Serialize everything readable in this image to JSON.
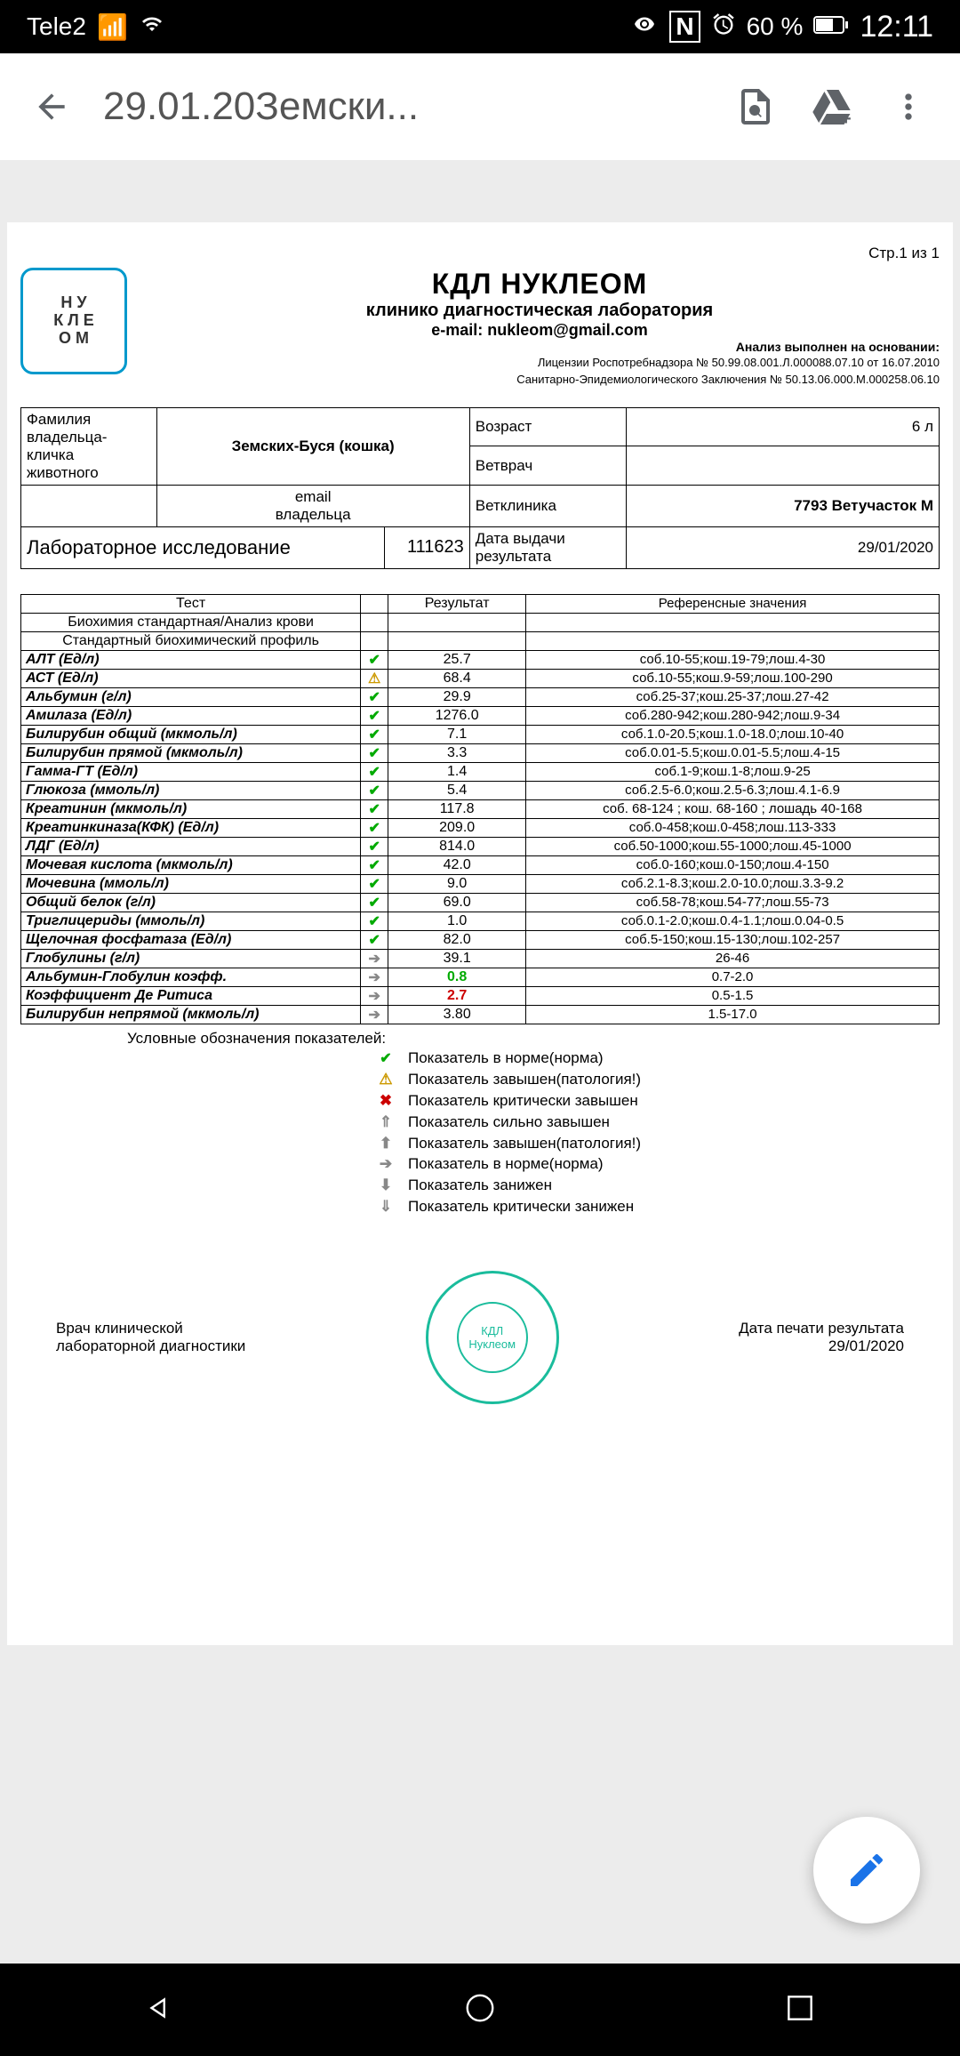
{
  "statusbar": {
    "carrier": "Tele2",
    "nfc": "N",
    "battery_pct": "60 %",
    "time": "12:11"
  },
  "appbar": {
    "title": "29.01.20Земски..."
  },
  "doc": {
    "page_counter": "Стр.1 из 1",
    "lab_title": "КДЛ НУКЛЕОМ",
    "lab_sub": "клинико диагностическая лаборатория",
    "lab_email_label": "e-mail: nukleom@gmail.com",
    "basis": "Анализ выполнен на основании:",
    "license1": "Лицензии Роспотребнадзора № 50.99.08.001.Л.000088.07.10 от 16.07.2010",
    "license2": "Санитарно-Эпидемиологического Заключения № 50.13.06.000.М.000258.06.10",
    "logo_text": "Н У\nК Л Е\nО М",
    "owner_label": "Фамилия\nвладельца-\nкличка\nживотного",
    "owner_value": "Земских-Буся (кошка)",
    "age_label": "Возраст",
    "age_value": "6 л",
    "vet_label": "Ветврач",
    "owner_email_label": "email\nвладельца",
    "clinic_label": "Ветклиника",
    "clinic_value": "7793 Ветучасток М",
    "study_label": "Лабораторное исследование",
    "study_num": "111623",
    "date_label": "Дата выдачи результата",
    "date_value": "29/01/2020",
    "columns": {
      "test": "Тест",
      "result": "Результат",
      "ref": "Референсные значения"
    },
    "section1": "Биохимия стандартная/Анализ крови",
    "section2": "Стандартный биохимический профиль",
    "rows": [
      {
        "test": "АЛТ (Ед/л)",
        "icon": "check",
        "result": "25.7",
        "ref": "соб.10-55;кош.19-79;лош.4-30"
      },
      {
        "test": "АСТ (Ед/л)",
        "icon": "warn",
        "result": "68.4",
        "ref": "соб.10-55;кош.9-59;лош.100-290"
      },
      {
        "test": "Альбумин (г/л)",
        "icon": "check",
        "result": "29.9",
        "ref": "соб.25-37;кош.25-37;лош.27-42"
      },
      {
        "test": "Амилаза (Ед/л)",
        "icon": "check",
        "result": "1276.0",
        "ref": "соб.280-942;кош.280-942;лош.9-34"
      },
      {
        "test": "Билирубин общий (мкмоль/л)",
        "icon": "check",
        "result": "7.1",
        "ref": "соб.1.0-20.5;кош.1.0-18.0;лош.10-40"
      },
      {
        "test": "Билирубин прямой (мкмоль/л)",
        "icon": "check",
        "result": "3.3",
        "ref": "соб.0.01-5.5;кош.0.01-5.5;лош.4-15"
      },
      {
        "test": "Гамма-ГТ (Ед/л)",
        "icon": "check",
        "result": "1.4",
        "ref": "соб.1-9;кош.1-8;лош.9-25"
      },
      {
        "test": "Глюкоза (ммоль/л)",
        "icon": "check",
        "result": "5.4",
        "ref": "соб.2.5-6.0;кош.2.5-6.3;лош.4.1-6.9"
      },
      {
        "test": "Креатинин (мкмоль/л)",
        "icon": "check",
        "result": "117.8",
        "ref": "соб. 68-124 ; кош. 68-160 ; лошадь 40-168"
      },
      {
        "test": "Креатинкиназа(КФК) (Ед/л)",
        "icon": "check",
        "result": "209.0",
        "ref": "соб.0-458;кош.0-458;лош.113-333"
      },
      {
        "test": "ЛДГ (Ед/л)",
        "icon": "check",
        "result": "814.0",
        "ref": "соб.50-1000;кош.55-1000;лош.45-1000"
      },
      {
        "test": "Мочевая кислота (мкмоль/л)",
        "icon": "check",
        "result": "42.0",
        "ref": "соб.0-160;кош.0-150;лош.4-150"
      },
      {
        "test": "Мочевина (ммоль/л)",
        "icon": "check",
        "result": "9.0",
        "ref": "соб.2.1-8.3;кош.2.0-10.0;лош.3.3-9.2"
      },
      {
        "test": "Общий белок (г/л)",
        "icon": "check",
        "result": "69.0",
        "ref": "соб.58-78;кош.54-77;лош.55-73"
      },
      {
        "test": "Триглицериды (ммоль/л)",
        "icon": "check",
        "result": "1.0",
        "ref": "соб.0.1-2.0;кош.0.4-1.1;лош.0.04-0.5"
      },
      {
        "test": "Щелочная фосфатаза (Ед/л)",
        "icon": "check",
        "result": "82.0",
        "ref": "соб.5-150;кош.15-130;лош.102-257"
      },
      {
        "test": "Глобулины (г/л)",
        "icon": "arrow",
        "result": "39.1",
        "ref": "26-46"
      },
      {
        "test": "Альбумин-Глобулин коэфф.",
        "icon": "arrow",
        "result": "0.8",
        "result_class": "green-val",
        "ref": "0.7-2.0"
      },
      {
        "test": "Коэффициент Де Ритиса",
        "icon": "arrow",
        "result": "2.7",
        "result_class": "red-val",
        "ref": "0.5-1.5"
      },
      {
        "test": "Билирубин непрямой (мкмоль/л)",
        "icon": "arrow",
        "result": "3.80",
        "ref": "1.5-17.0"
      }
    ],
    "legend_title": "Условные обозначения показателей:",
    "legend": [
      {
        "icon": "check",
        "text": "Показатель в норме(норма)"
      },
      {
        "icon": "warn",
        "text": "Показатель завышен(патология!)"
      },
      {
        "icon": "cross",
        "text": "Показатель критически завышен"
      },
      {
        "icon": "up2",
        "text": "Показатель сильно завышен"
      },
      {
        "icon": "up",
        "text": "Показатель завышен(патология!)"
      },
      {
        "icon": "right",
        "text": "Показатель в норме(норма)"
      },
      {
        "icon": "down",
        "text": "Показатель занижен"
      },
      {
        "icon": "down2",
        "text": "Показатель критически занижен"
      }
    ],
    "footer_left": "Врач клинической\nлабораторной диагностики",
    "footer_right": "Дата печати результата\n29/01/2020",
    "stamp": "КДЛ Нуклеом"
  }
}
